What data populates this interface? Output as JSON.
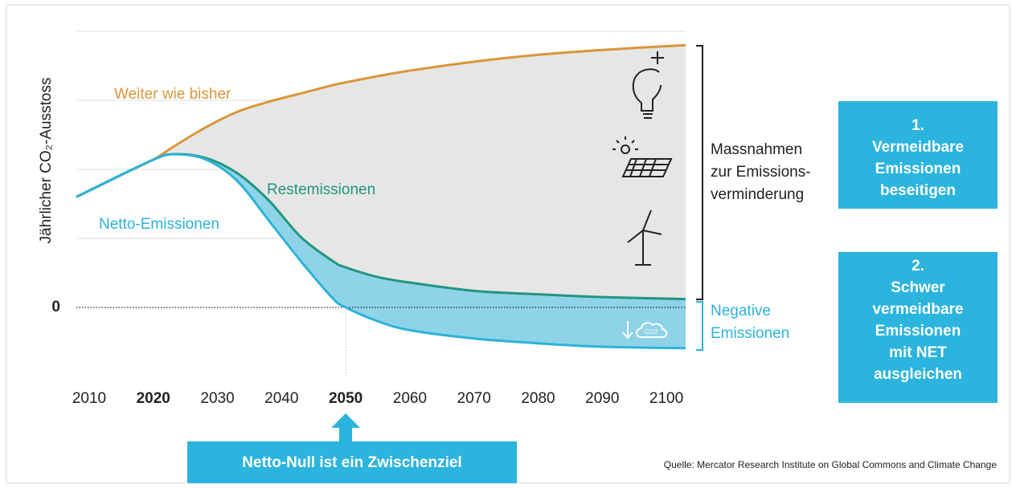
{
  "chart_data": {
    "type": "area-line",
    "y_label": "Jährlicher CO₂-Ausstoss",
    "x": [
      2008,
      2015,
      2020,
      2023,
      2028,
      2033,
      2038,
      2043,
      2048,
      2050,
      2055,
      2060,
      2070,
      2080,
      2090,
      2103
    ],
    "series": [
      {
        "name": "Weiter wie bisher",
        "color": "#d9963b",
        "values": [
          1.6,
          1.92,
          2.14,
          2.32,
          2.6,
          2.83,
          2.98,
          3.1,
          3.22,
          3.26,
          3.35,
          3.43,
          3.56,
          3.66,
          3.73,
          3.8
        ]
      },
      {
        "name": "Restemissionen",
        "color": "#23957f",
        "values": [
          1.6,
          1.92,
          2.14,
          2.22,
          2.17,
          1.95,
          1.55,
          1.02,
          0.67,
          0.58,
          0.44,
          0.36,
          0.24,
          0.19,
          0.15,
          0.12
        ]
      },
      {
        "name": "Netto-Emissionen",
        "color": "#2cb3d8",
        "values": [
          1.6,
          1.92,
          2.14,
          2.22,
          2.15,
          1.84,
          1.26,
          0.67,
          0.13,
          0,
          -0.2,
          -0.33,
          -0.45,
          -0.52,
          -0.57,
          -0.59
        ]
      }
    ],
    "xlim": [
      2008,
      2103
    ],
    "xticks": [
      2010,
      2020,
      2030,
      2040,
      2050,
      2060,
      2070,
      2080,
      2090,
      2100
    ],
    "bold_xticks": [
      2020,
      2050
    ],
    "ylim": [
      -1.0,
      4.0
    ],
    "yticks": [
      0
    ],
    "gridlines": [
      1,
      2,
      3,
      4
    ],
    "grid": true,
    "massnahmen": [
      "Massnahmen",
      "zur Emissions-",
      "verminderung"
    ],
    "negative": [
      "Negative",
      "Emissionen"
    ],
    "icon_text": "CO2",
    "box1": [
      "1.",
      "Vermeidbare",
      "Emissionen",
      "beseitigen"
    ],
    "box2": [
      "2.",
      "Schwer",
      "vermeidbare",
      "Emissionen",
      "mit NET",
      "ausgleichen"
    ],
    "callout": "Netto-Null ist ein Zwischenziel",
    "source": "Quelle: Mercator Research Institute on Global Commons and Climate Change"
  }
}
